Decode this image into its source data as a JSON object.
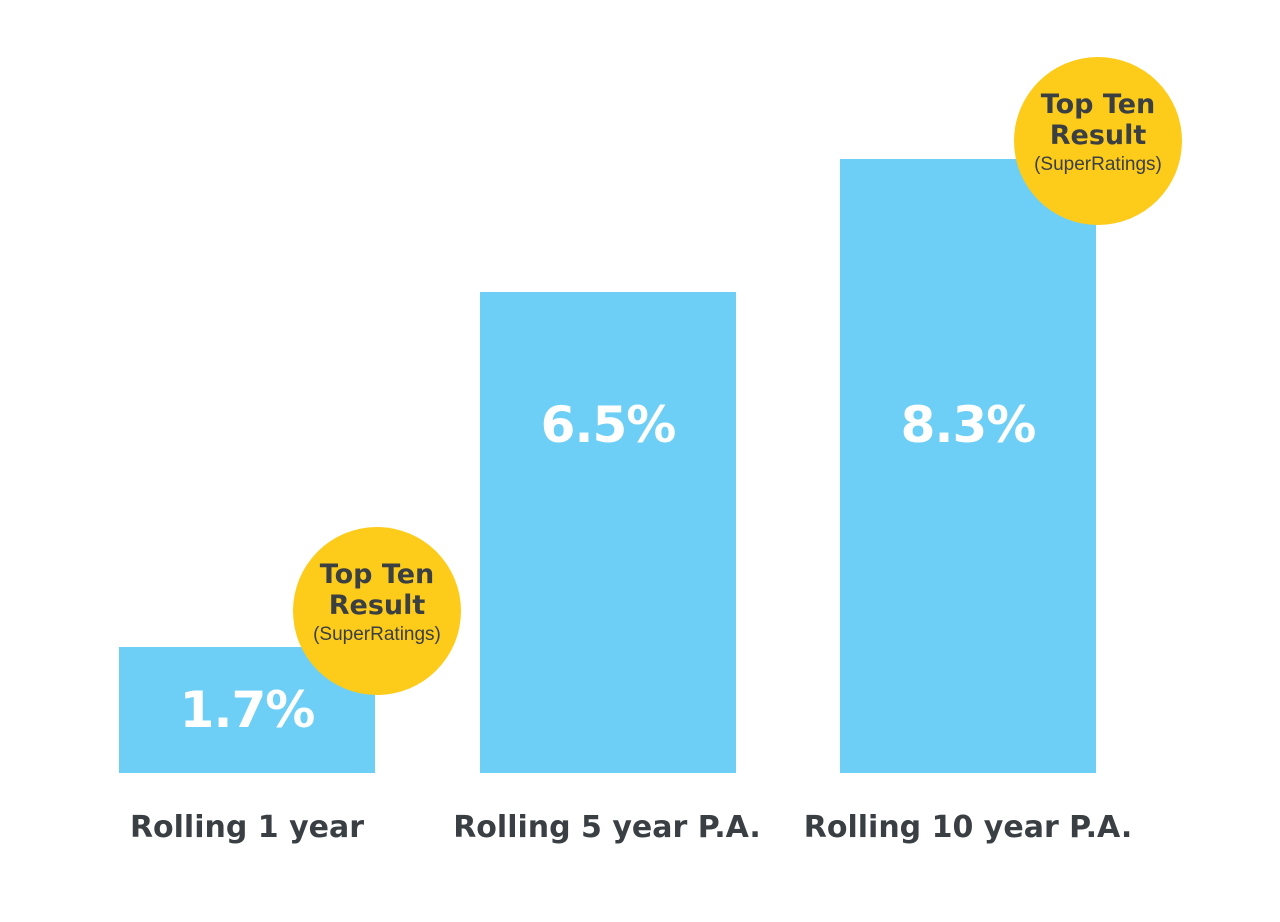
{
  "chart_data": {
    "type": "bar",
    "categories": [
      "Rolling 1 year",
      "Rolling 5 year P.A.",
      "Rolling 10 year P.A."
    ],
    "values": [
      1.7,
      6.5,
      8.3
    ],
    "value_labels": [
      "1.7%",
      "6.5%",
      "8.3%"
    ],
    "ylim": [
      0,
      10
    ],
    "grid": false,
    "bar_color": "#6dcff6",
    "annotations": [
      {
        "category_index": 0,
        "title_line1": "Top Ten",
        "title_line2": "Result",
        "subtitle": "(SuperRatings)",
        "color": "#fdcb1a"
      },
      {
        "category_index": 2,
        "title_line1": "Top Ten",
        "title_line2": "Result",
        "subtitle": "(SuperRatings)",
        "color": "#fdcb1a"
      }
    ]
  }
}
